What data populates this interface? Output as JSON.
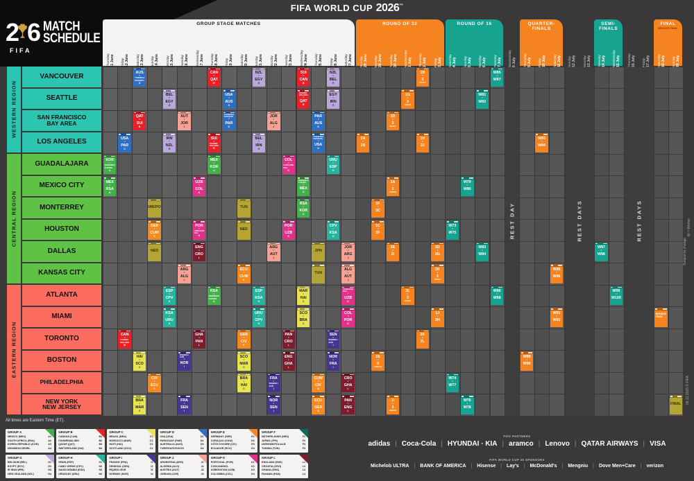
{
  "title": {
    "prefix": "FIFA WORLD CUP",
    "year": "2026",
    "tm": "™"
  },
  "logo": {
    "num": "26",
    "fifa": "FIFA",
    "line1": "MATCH",
    "line2": "SCHEDULE"
  },
  "note": "All times are Eastern Time (ET).",
  "sections": {
    "gs": "GROUP STAGE MATCHES",
    "r32": "ROUND OF 32",
    "r16": "ROUND OF 16",
    "qf": "QUARTER-FINALS",
    "sf": "SEMI-FINALS",
    "f": "FINAL",
    "f_sub": "BRONZE FINAL"
  },
  "columns": [
    {
      "d": "Thursday",
      "n": "11 June",
      "s": "gs"
    },
    {
      "d": "Friday",
      "n": "12 June",
      "s": "gs"
    },
    {
      "d": "Saturday",
      "n": "13 June",
      "s": "gs"
    },
    {
      "d": "Sunday",
      "n": "14 June",
      "s": "gs"
    },
    {
      "d": "Monday",
      "n": "15 June",
      "s": "gs"
    },
    {
      "d": "Tuesday",
      "n": "16 June",
      "s": "gs"
    },
    {
      "d": "Wednesday",
      "n": "17 June",
      "s": "gs"
    },
    {
      "d": "Thursday",
      "n": "18 June",
      "s": "gs"
    },
    {
      "d": "Friday",
      "n": "19 June",
      "s": "gs"
    },
    {
      "d": "Saturday",
      "n": "20 June",
      "s": "gs"
    },
    {
      "d": "Sunday",
      "n": "21 June",
      "s": "gs"
    },
    {
      "d": "Monday",
      "n": "22 June",
      "s": "gs"
    },
    {
      "d": "Tuesday",
      "n": "23 June",
      "s": "gs"
    },
    {
      "d": "Wednesday",
      "n": "24 June",
      "s": "gs"
    },
    {
      "d": "Thursday",
      "n": "25 June",
      "s": "gs"
    },
    {
      "d": "Friday",
      "n": "26 June",
      "s": "gs"
    },
    {
      "d": "Saturday",
      "n": "27 June",
      "s": "gs"
    },
    {
      "d": "Sunday",
      "n": "28 June",
      "s": "r32"
    },
    {
      "d": "Monday",
      "n": "29 June",
      "s": "r32"
    },
    {
      "d": "Tuesday",
      "n": "30 June",
      "s": "r32"
    },
    {
      "d": "Wednesday",
      "n": "1 July",
      "s": "r32"
    },
    {
      "d": "Thursday",
      "n": "2 July",
      "s": "r32"
    },
    {
      "d": "Friday",
      "n": "3 July",
      "s": "r32"
    },
    {
      "d": "Saturday",
      "n": "4 July",
      "s": "r16"
    },
    {
      "d": "Sunday",
      "n": "5 July",
      "s": "r16"
    },
    {
      "d": "Monday",
      "n": "6 July",
      "s": "r16"
    },
    {
      "d": "Tuesday",
      "n": "7 July",
      "s": "r16"
    },
    {
      "d": "Wednesday",
      "n": "8 July",
      "s": "rest"
    },
    {
      "d": "Thursday",
      "n": "9 July",
      "s": "qf"
    },
    {
      "d": "Friday",
      "n": "10 July",
      "s": "qf"
    },
    {
      "d": "Saturday",
      "n": "11 July",
      "s": "qf"
    },
    {
      "d": "Sunday",
      "n": "12 July",
      "s": "rest"
    },
    {
      "d": "Monday",
      "n": "13 July",
      "s": "rest"
    },
    {
      "d": "Tuesday",
      "n": "14 July",
      "s": "sf"
    },
    {
      "d": "Wednesday",
      "n": "15 July",
      "s": "sf"
    },
    {
      "d": "Thursday",
      "n": "16 July",
      "s": "rest"
    },
    {
      "d": "Friday",
      "n": "17 July",
      "s": "rest"
    },
    {
      "d": "Saturday",
      "n": "18 July",
      "s": "f"
    },
    {
      "d": "Sunday",
      "n": "19 July",
      "s": "f"
    }
  ],
  "rest_labels": [
    {
      "c0": 27,
      "c1": 27,
      "text": "REST DAY"
    },
    {
      "c0": 31,
      "c1": 32,
      "text": "REST DAYS"
    },
    {
      "c0": 35,
      "c1": 36,
      "text": "REST DAYS"
    }
  ],
  "regions": [
    {
      "name": "WESTERN REGION",
      "color": "#2cc5b1",
      "r0": 0,
      "r1": 3
    },
    {
      "name": "CENTRAL REGION",
      "color": "#5ec244",
      "r0": 4,
      "r1": 9
    },
    {
      "name": "EASTERN REGION",
      "color": "#fc6c5f",
      "r0": 10,
      "r1": 15
    }
  ],
  "cities": [
    "VANCOUVER",
    "SEATTLE",
    "SAN FRANCISCO\nBAY AREA",
    "LOS ANGELES",
    "GUADALAJARA",
    "MEXICO CITY",
    "MONTERREY",
    "HOUSTON",
    "DALLAS",
    "KANSAS CITY",
    "ATLANTA",
    "MIAMI",
    "TORONTO",
    "BOSTON",
    "PHILADELPHIA",
    "NEW YORK\nNEW JERSEY"
  ],
  "colors": {
    "A": "#43b049",
    "B": "#e62129",
    "C": "#e8e451",
    "D": "#2e6fc2",
    "E": "#f6891f",
    "F": "#0c6b59",
    "G": "#b9a8d9",
    "H": "#27b49e",
    "I": "#45368f",
    "J": "#f5a294",
    "K": "#e23189",
    "L": "#7c1e2d",
    "R32": "#f5831f",
    "R16": "#16a390",
    "QF": "#f5831f",
    "SF": "#16a390",
    "BF": "#f5831f",
    "F_FINAL": "#b3a433",
    "band_orange": "#f5831f",
    "band_teal": "#16a390",
    "band_white": "#f4f3f1"
  },
  "dark_text_groups": [
    "C",
    "G",
    "J"
  ],
  "matches": [
    [
      0,
      2,
      "D",
      "AUS",
      "TUR/ROU/SVK/KOS"
    ],
    [
      0,
      7,
      "B",
      "CAN",
      "QAT"
    ],
    [
      0,
      10,
      "G",
      "NZL",
      "EGY"
    ],
    [
      0,
      13,
      "B",
      "SUI",
      "CAN"
    ],
    [
      0,
      15,
      "G",
      "NZL",
      "BEL"
    ],
    [
      0,
      21,
      "R32",
      "1B",
      "3|E/F/G/I"
    ],
    [
      0,
      26,
      "R16",
      "W85",
      "W87"
    ],
    [
      1,
      4,
      "G",
      "BEL",
      "EGY"
    ],
    [
      1,
      8,
      "D",
      "USA",
      "AUS"
    ],
    [
      1,
      13,
      "B",
      "ITA/NIR/WAL/BIH",
      "QAT"
    ],
    [
      1,
      15,
      "G",
      "EGY",
      "IRN"
    ],
    [
      1,
      20,
      "R32",
      "1G",
      "3|A/E/H/I"
    ],
    [
      1,
      25,
      "R16",
      "W81",
      "W82"
    ],
    [
      2,
      2,
      "B",
      "QAT",
      "SUI"
    ],
    [
      2,
      5,
      "J",
      "AUT",
      "JOR"
    ],
    [
      2,
      8,
      "D",
      "TUR/ROU/SVK/KOS",
      "PAR"
    ],
    [
      2,
      11,
      "J",
      "JOR",
      "ALG"
    ],
    [
      2,
      14,
      "D",
      "PAR",
      "AUS"
    ],
    [
      2,
      19,
      "R32",
      "1D",
      "3|B/E/F/I"
    ],
    [
      3,
      1,
      "D",
      "USA",
      "PAR"
    ],
    [
      3,
      4,
      "G",
      "IRN",
      "NZL"
    ],
    [
      3,
      7,
      "B",
      "SUI",
      "ITA/NIR/WAL/BIH"
    ],
    [
      3,
      10,
      "G",
      "BEL",
      "IRN"
    ],
    [
      3,
      14,
      "D",
      "TUR/ROU/SVK/KOS",
      "USA"
    ],
    [
      3,
      17,
      "R32",
      "2A",
      "2B"
    ],
    [
      3,
      21,
      "R32",
      "1H",
      "2J"
    ],
    [
      3,
      29,
      "QF",
      "W93",
      "W94"
    ],
    [
      4,
      0,
      "A",
      "KOR",
      "DEN/MKD/CZE/IRL"
    ],
    [
      4,
      7,
      "A",
      "MEX",
      "KOR"
    ],
    [
      4,
      12,
      "K",
      "COL",
      "COD/JAM/NCL"
    ],
    [
      4,
      15,
      "H",
      "URU",
      "ESP"
    ],
    [
      5,
      0,
      "A",
      "MEX",
      "RSA"
    ],
    [
      5,
      6,
      "K",
      "UZB",
      "COL"
    ],
    [
      5,
      13,
      "A",
      "DEN/MKD/CZE/IRL",
      "MEX"
    ],
    [
      5,
      19,
      "R32",
      "1A",
      "3|C/E/F/H"
    ],
    [
      5,
      24,
      "R16",
      "W79",
      "W80"
    ],
    [
      6,
      3,
      "F",
      "UKR/SWE/POL/ALB",
      "TUN"
    ],
    [
      6,
      9,
      "F",
      "TUN",
      "JPN"
    ],
    [
      6,
      13,
      "A",
      "RSA",
      "KOR"
    ],
    [
      6,
      18,
      "R32",
      "1F",
      "2C"
    ],
    [
      7,
      3,
      "E",
      "GER",
      "CUW"
    ],
    [
      7,
      6,
      "K",
      "POR",
      "COD/JAM/NCL"
    ],
    [
      7,
      9,
      "F",
      "NED",
      "UKR/SWE/POL/ALB"
    ],
    [
      7,
      12,
      "K",
      "POR",
      "UZB"
    ],
    [
      7,
      15,
      "H",
      "CPV",
      "KSA"
    ],
    [
      7,
      18,
      "R32",
      "1C",
      "2F"
    ],
    [
      7,
      23,
      "R16",
      "W73",
      "W75"
    ],
    [
      8,
      3,
      "F",
      "NED",
      "JPN"
    ],
    [
      8,
      6,
      "L",
      "ENG",
      "CRO"
    ],
    [
      8,
      11,
      "J",
      "ARG",
      "AUT"
    ],
    [
      8,
      14,
      "F",
      "JPN",
      "UKR/SWE/POL/ALB"
    ],
    [
      8,
      16,
      "J",
      "JOR",
      "ARG"
    ],
    [
      8,
      19,
      "R32",
      "2E",
      "2I"
    ],
    [
      8,
      22,
      "R32",
      "2D",
      "2G"
    ],
    [
      8,
      25,
      "R16",
      "W83",
      "W84"
    ],
    [
      8,
      33,
      "SF",
      "W97",
      "W98"
    ],
    [
      9,
      5,
      "J",
      "ARG",
      "ALG"
    ],
    [
      9,
      9,
      "E",
      "ECU",
      "CUW"
    ],
    [
      9,
      14,
      "F",
      "TUN",
      "NED"
    ],
    [
      9,
      16,
      "J",
      "ALG",
      "AUT"
    ],
    [
      9,
      22,
      "R32",
      "1K",
      "3|D/E/I/J"
    ],
    [
      9,
      30,
      "QF",
      "W95",
      "W96"
    ],
    [
      10,
      4,
      "H",
      "ESP",
      "CPV"
    ],
    [
      10,
      7,
      "A",
      "RSA",
      "DEN/MKD/CZE/IRL"
    ],
    [
      10,
      10,
      "H",
      "ESP",
      "KSA"
    ],
    [
      10,
      13,
      "C",
      "MAR",
      "HAI"
    ],
    [
      10,
      16,
      "K",
      "COD/JAM/NCL",
      "UZB"
    ],
    [
      10,
      20,
      "R32",
      "1L",
      "3|E/H/I/J"
    ],
    [
      10,
      26,
      "R16",
      "W86",
      "W88"
    ],
    [
      10,
      34,
      "SF",
      "W99",
      "W100"
    ],
    [
      11,
      4,
      "H",
      "KSA",
      "URU"
    ],
    [
      11,
      10,
      "H",
      "URU",
      "CPV"
    ],
    [
      11,
      13,
      "C",
      "SCO",
      "BRA"
    ],
    [
      11,
      16,
      "K",
      "COL",
      "POR"
    ],
    [
      11,
      22,
      "R32",
      "1J",
      "2H"
    ],
    [
      11,
      30,
      "QF",
      "W91",
      "W92"
    ],
    [
      11,
      37,
      "BF",
      "BRONZE",
      "FINAL"
    ],
    [
      12,
      1,
      "B",
      "CAN",
      "ITA/NIR/WAL/BIH"
    ],
    [
      12,
      6,
      "L",
      "GHA",
      "PAN"
    ],
    [
      12,
      9,
      "E",
      "GER",
      "CIV"
    ],
    [
      12,
      12,
      "L",
      "PAN",
      "CRO"
    ],
    [
      12,
      15,
      "I",
      "SEN",
      "IRQ/BOL/SUR"
    ],
    [
      12,
      21,
      "R32",
      "2K",
      "2L"
    ],
    [
      13,
      2,
      "C",
      "HAI",
      "SCO"
    ],
    [
      13,
      5,
      "I",
      "IRQ/BOL/SUR",
      "NOR"
    ],
    [
      13,
      9,
      "C",
      "SCO",
      "MAR"
    ],
    [
      13,
      12,
      "L",
      "ENG",
      "GHA"
    ],
    [
      13,
      15,
      "I",
      "NOR",
      "FRA"
    ],
    [
      13,
      18,
      "R32",
      "1E",
      "3|A/B/C/D"
    ],
    [
      13,
      28,
      "QF",
      "W89",
      "W90"
    ],
    [
      14,
      3,
      "E",
      "CIV",
      "ECU"
    ],
    [
      14,
      9,
      "C",
      "BRA",
      "HAI"
    ],
    [
      14,
      11,
      "I",
      "FRA",
      "IRQ/BOL/SUR"
    ],
    [
      14,
      14,
      "E",
      "CUW",
      "CIV"
    ],
    [
      14,
      16,
      "L",
      "CRO",
      "GHA"
    ],
    [
      14,
      23,
      "R16",
      "W74",
      "W77"
    ],
    [
      15,
      2,
      "C",
      "BRA",
      "MAR"
    ],
    [
      15,
      5,
      "I",
      "FRA",
      "SEN"
    ],
    [
      15,
      11,
      "I",
      "NOR",
      "SEN"
    ],
    [
      15,
      14,
      "E",
      "ECU",
      "GER"
    ],
    [
      15,
      16,
      "L",
      "PAN",
      "ENG"
    ],
    [
      15,
      19,
      "R32",
      "1I",
      "3|C/D/F/G"
    ],
    [
      15,
      24,
      "R16",
      "W76",
      "W78"
    ],
    [
      15,
      38,
      "F",
      "FINAL",
      ""
    ]
  ],
  "groups": [
    {
      "letter": "A",
      "title": "GROUP A",
      "teams": [
        [
          "MEXICO (MEX)",
          "A1"
        ],
        [
          "SOUTH AFRICA (RSA)",
          "A2"
        ],
        [
          "KOREA REPUBLIC (KOR)",
          "A3"
        ],
        [
          "DEN/MKD/CZE/IRL",
          "A4"
        ]
      ]
    },
    {
      "letter": "B",
      "title": "GROUP B",
      "teams": [
        [
          "CANADA (CAN)",
          "B1"
        ],
        [
          "ITA/NIR/WAL/BIH",
          "B2"
        ],
        [
          "QATAR (QAT)",
          "B3"
        ],
        [
          "SWITZERLAND (SUI)",
          "B4"
        ]
      ]
    },
    {
      "letter": "C",
      "title": "GROUP C",
      "teams": [
        [
          "BRAZIL (BRA)",
          "C1"
        ],
        [
          "MOROCCO (MAR)",
          "C2"
        ],
        [
          "HAITI (HAI)",
          "C3"
        ],
        [
          "SCOTLAND (SCO)",
          "C4"
        ]
      ]
    },
    {
      "letter": "D",
      "title": "GROUP D",
      "teams": [
        [
          "USA (USA)",
          "D1"
        ],
        [
          "PARAGUAY (PAR)",
          "D2"
        ],
        [
          "AUSTRALIA (AUS)",
          "D3"
        ],
        [
          "TUR/ROU/SVK/KOS",
          "D4"
        ]
      ]
    },
    {
      "letter": "E",
      "title": "GROUP E",
      "teams": [
        [
          "GERMANY (GER)",
          "E1"
        ],
        [
          "CURAÇAO (CUW)",
          "E2"
        ],
        [
          "CÔTE D'IVOIRE (CIV)",
          "E3"
        ],
        [
          "ECUADOR (ECU)",
          "E4"
        ]
      ]
    },
    {
      "letter": "F",
      "title": "GROUP F",
      "teams": [
        [
          "NETHERLANDS (NED)",
          "F1"
        ],
        [
          "JAPAN (JPN)",
          "F2"
        ],
        [
          "UKR/SWE/POL/ALB",
          "F3"
        ],
        [
          "TUNISIA (TUN)",
          "F4"
        ]
      ]
    },
    {
      "letter": "G",
      "title": "GROUP G",
      "teams": [
        [
          "BELGIUM (BEL)",
          "G1"
        ],
        [
          "EGYPT (EGY)",
          "G2"
        ],
        [
          "IR IRAN (IRN)",
          "G3"
        ],
        [
          "NEW ZEALAND (NZL)",
          "G4"
        ]
      ]
    },
    {
      "letter": "H",
      "title": "GROUP H",
      "teams": [
        [
          "SPAIN (ESP)",
          "H1"
        ],
        [
          "CABO VERDE (CPV)",
          "H2"
        ],
        [
          "SAUDI ARABIA (KSA)",
          "H3"
        ],
        [
          "URUGUAY (URU)",
          "H4"
        ]
      ]
    },
    {
      "letter": "I",
      "title": "GROUP I",
      "teams": [
        [
          "FRANCE (FRA)",
          "I1"
        ],
        [
          "SENEGAL (SEN)",
          "I2"
        ],
        [
          "IRQ/BOL/SUR",
          "I3"
        ],
        [
          "NORWAY (NOR)",
          "I4"
        ]
      ]
    },
    {
      "letter": "J",
      "title": "GROUP J",
      "teams": [
        [
          "ARGENTINA (ARG)",
          "J1"
        ],
        [
          "ALGERIA (ALG)",
          "J2"
        ],
        [
          "AUSTRIA (AUT)",
          "J3"
        ],
        [
          "JORDAN (JOR)",
          "J4"
        ]
      ]
    },
    {
      "letter": "K",
      "title": "GROUP K",
      "teams": [
        [
          "PORTUGAL (POR)",
          "K1"
        ],
        [
          "COD/JAM/NCL",
          "K2"
        ],
        [
          "UZBEKISTAN (UZB)",
          "K3"
        ],
        [
          "COLOMBIA (COL)",
          "K4"
        ]
      ]
    },
    {
      "letter": "L",
      "title": "GROUP L",
      "teams": [
        [
          "ENGLAND (ENG)",
          "L1"
        ],
        [
          "CROATIA (CRO)",
          "L2"
        ],
        [
          "GHANA (GHA)",
          "L3"
        ],
        [
          "PANAMA (PAN)",
          "L4"
        ]
      ]
    }
  ],
  "sponsors": {
    "partners_label": "FIFA PARTNERS",
    "partners": [
      "adidas",
      "Coca-Cola",
      "HYUNDAI · KIA",
      "aramco",
      "Lenovo",
      "QATAR AIRWAYS",
      "VISA"
    ],
    "wc_label": "FIFA WORLD CUP 26 SPONSORS",
    "wc": [
      "Michelob ULTRA",
      "BANK OF AMERICA",
      "Hisense",
      "Lay's",
      "McDonald's",
      "Mengniu",
      "Dove Men+Care",
      "verizon"
    ]
  },
  "annotations": {
    "winner": "W = Winner",
    "subject": "Subject to change",
    "copyright": "06.12.2025 © FIFA"
  }
}
